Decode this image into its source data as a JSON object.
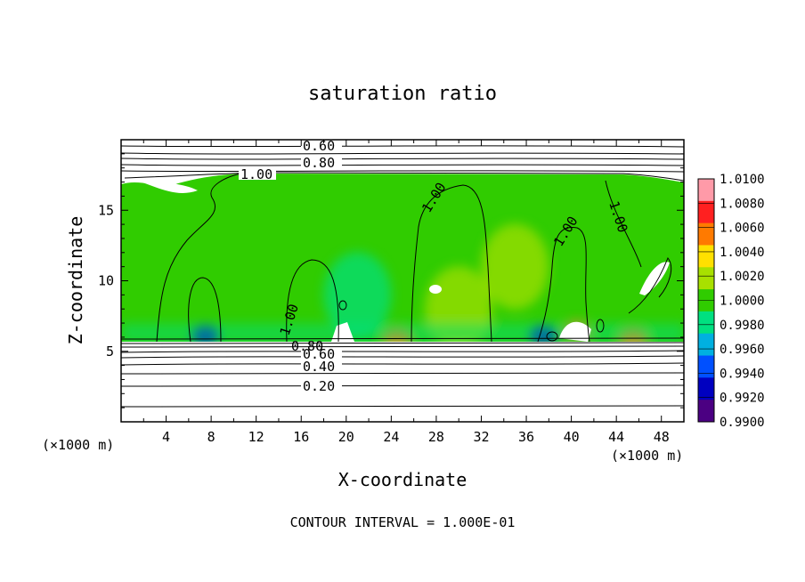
{
  "chart_data": {
    "type": "heatmap",
    "title": "saturation ratio",
    "xlabel": "X-coordinate",
    "ylabel": "Z-coordinate",
    "x_unit": "(×1000 m)",
    "y_unit": "(×1000 m)",
    "xlim": [
      0,
      50
    ],
    "ylim": [
      0,
      20
    ],
    "x_ticks": [
      "4",
      "8",
      "12",
      "16",
      "20",
      "24",
      "28",
      "32",
      "36",
      "40",
      "44",
      "48"
    ],
    "y_ticks": [
      "5",
      "10",
      "15"
    ],
    "contour_interval_text": "CONTOUR INTERVAL = 1.000E-01",
    "contour_labels": [
      "0.20",
      "0.40",
      "0.60",
      "0.80",
      "0.60",
      "0.80",
      "1.00",
      "1.00",
      "1.00",
      "1.00",
      "1.00"
    ],
    "colorbar": {
      "min": 0.99,
      "max": 1.01,
      "labels": [
        "1.0100",
        "1.0080",
        "1.0060",
        "1.0040",
        "1.0020",
        "1.0000",
        "0.9980",
        "0.9960",
        "0.9940",
        "0.9920",
        "0.9900"
      ],
      "colors": [
        "#ff9aa8",
        "#ff2020",
        "#ff7a00",
        "#ffe000",
        "#a8e000",
        "#30cc00",
        "#00e080",
        "#00b0e0",
        "#0050ff",
        "#0000c0",
        "#4b0082"
      ]
    },
    "cloud_base_z": 5.6,
    "cloud_top_z": 17.4,
    "hotspots": [
      {
        "x": 7.5,
        "z": 6.1,
        "value": 0.9915
      },
      {
        "x": 24.5,
        "z": 5.9,
        "value": 1.0065
      },
      {
        "x": 37.5,
        "z": 6.1,
        "value": 0.9925
      },
      {
        "x": 40.5,
        "z": 6.4,
        "value": 1.007
      },
      {
        "x": 45.5,
        "z": 5.9,
        "value": 1.006
      },
      {
        "x": 35.0,
        "z": 11.0,
        "value": 1.0022
      },
      {
        "x": 30.0,
        "z": 8.0,
        "value": 1.003
      },
      {
        "x": 21.0,
        "z": 9.0,
        "value": 0.9988
      }
    ]
  }
}
